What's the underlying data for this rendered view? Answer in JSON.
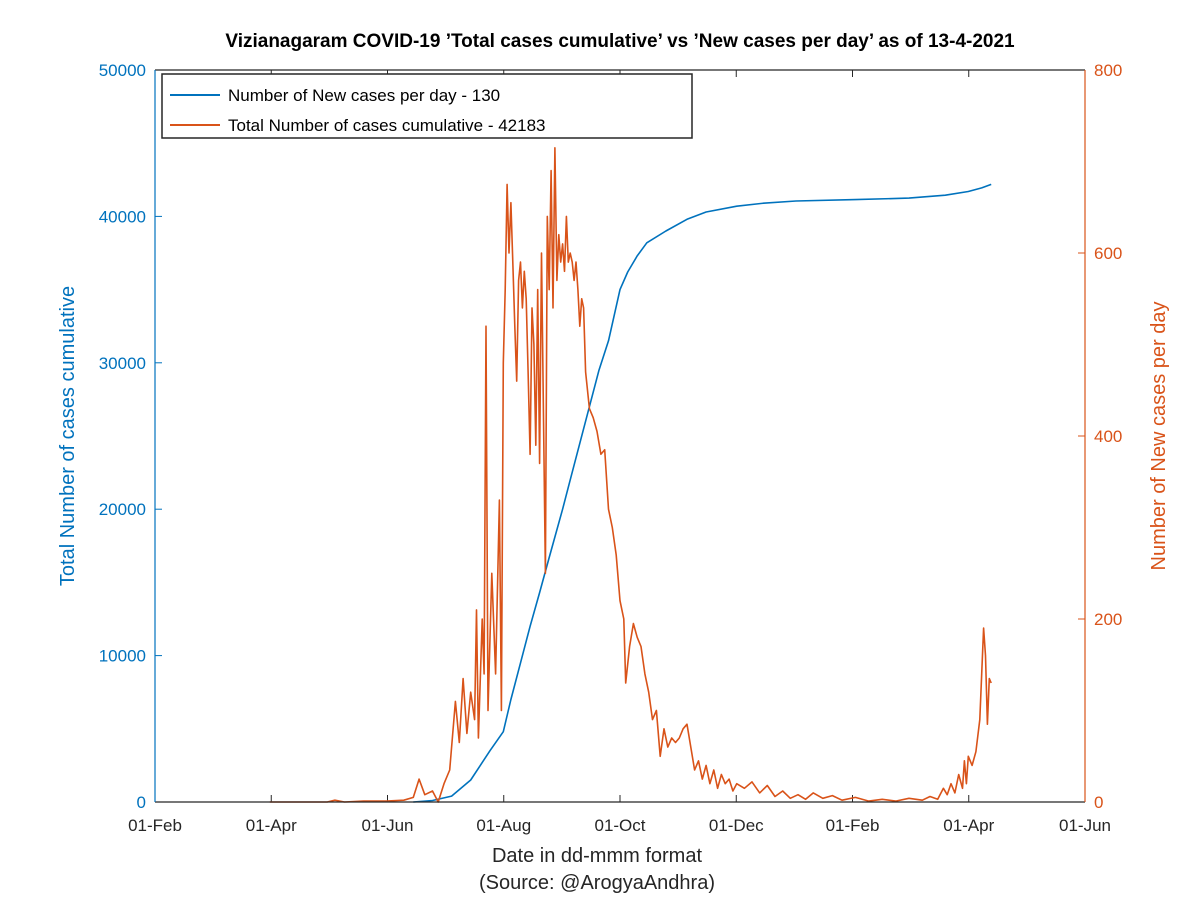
{
  "chart_data": {
    "type": "line",
    "title": "Vizianagaram COVID-19 ’Total cases cumulative’ vs ’New cases per day’ as of 13-4-2021",
    "xlabel": "Date in dd-mmm format",
    "source": "(Source: @ArogyaAndhra)",
    "x_ticks": [
      "01-Feb",
      "01-Apr",
      "01-Jun",
      "01-Aug",
      "01-Oct",
      "01-Dec",
      "01-Feb",
      "01-Apr",
      "01-Jun"
    ],
    "x_range": [
      "2020-02-01",
      "2021-06-01"
    ],
    "y_left": {
      "label": "Total Number of cases cumulative",
      "range": [
        0,
        50000
      ],
      "ticks": [
        "0",
        "10000",
        "20000",
        "30000",
        "40000",
        "50000"
      ],
      "color": "#0072BD"
    },
    "y_right": {
      "label": "Number of New cases per day",
      "range": [
        0,
        800
      ],
      "ticks": [
        "0",
        "200",
        "400",
        "600",
        "800"
      ],
      "color": "#D95319"
    },
    "legend": {
      "placement": "top-left",
      "entries": [
        "Number of New cases per day - 130",
        "Total Number of cases cumulative - 42183"
      ]
    },
    "series": [
      {
        "name": "Total Number of cases cumulative - 42183",
        "axis": "left",
        "color": "#0072BD",
        "points": [
          [
            "2020-06-15",
            0
          ],
          [
            "2020-06-25",
            100
          ],
          [
            "2020-07-05",
            400
          ],
          [
            "2020-07-15",
            1500
          ],
          [
            "2020-07-20",
            2500
          ],
          [
            "2020-07-25",
            3500
          ],
          [
            "2020-08-01",
            4800
          ],
          [
            "2020-08-05",
            7000
          ],
          [
            "2020-08-10",
            9500
          ],
          [
            "2020-08-15",
            12000
          ],
          [
            "2020-08-20",
            14300
          ],
          [
            "2020-08-25",
            16700
          ],
          [
            "2020-09-01",
            20000
          ],
          [
            "2020-09-05",
            22000
          ],
          [
            "2020-09-10",
            24500
          ],
          [
            "2020-09-15",
            27000
          ],
          [
            "2020-09-20",
            29500
          ],
          [
            "2020-09-25",
            31500
          ],
          [
            "2020-10-01",
            35000
          ],
          [
            "2020-10-05",
            36200
          ],
          [
            "2020-10-10",
            37300
          ],
          [
            "2020-10-15",
            38200
          ],
          [
            "2020-10-25",
            39000
          ],
          [
            "2020-11-05",
            39800
          ],
          [
            "2020-11-15",
            40300
          ],
          [
            "2020-12-01",
            40700
          ],
          [
            "2020-12-15",
            40900
          ],
          [
            "2021-01-01",
            41050
          ],
          [
            "2021-02-01",
            41150
          ],
          [
            "2021-03-01",
            41250
          ],
          [
            "2021-03-20",
            41450
          ],
          [
            "2021-04-01",
            41700
          ],
          [
            "2021-04-08",
            41950
          ],
          [
            "2021-04-13",
            42183
          ]
        ]
      },
      {
        "name": "Number of New cases per day - 130",
        "axis": "right",
        "color": "#D95319",
        "points": [
          [
            "2020-04-01",
            0
          ],
          [
            "2020-05-01",
            0
          ],
          [
            "2020-05-05",
            2
          ],
          [
            "2020-05-10",
            0
          ],
          [
            "2020-05-20",
            1
          ],
          [
            "2020-06-01",
            1
          ],
          [
            "2020-06-10",
            2
          ],
          [
            "2020-06-15",
            5
          ],
          [
            "2020-06-18",
            25
          ],
          [
            "2020-06-21",
            8
          ],
          [
            "2020-06-25",
            12
          ],
          [
            "2020-06-28",
            0
          ],
          [
            "2020-07-01",
            20
          ],
          [
            "2020-07-04",
            35
          ],
          [
            "2020-07-07",
            110
          ],
          [
            "2020-07-09",
            65
          ],
          [
            "2020-07-11",
            135
          ],
          [
            "2020-07-13",
            75
          ],
          [
            "2020-07-15",
            120
          ],
          [
            "2020-07-17",
            90
          ],
          [
            "2020-07-18",
            210
          ],
          [
            "2020-07-19",
            70
          ],
          [
            "2020-07-21",
            200
          ],
          [
            "2020-07-22",
            140
          ],
          [
            "2020-07-23",
            520
          ],
          [
            "2020-07-24",
            100
          ],
          [
            "2020-07-26",
            250
          ],
          [
            "2020-07-28",
            140
          ],
          [
            "2020-07-30",
            330
          ],
          [
            "2020-07-31",
            100
          ],
          [
            "2020-08-01",
            480
          ],
          [
            "2020-08-02",
            560
          ],
          [
            "2020-08-03",
            675
          ],
          [
            "2020-08-04",
            600
          ],
          [
            "2020-08-05",
            655
          ],
          [
            "2020-08-06",
            590
          ],
          [
            "2020-08-07",
            520
          ],
          [
            "2020-08-08",
            460
          ],
          [
            "2020-08-09",
            570
          ],
          [
            "2020-08-10",
            590
          ],
          [
            "2020-08-11",
            540
          ],
          [
            "2020-08-12",
            580
          ],
          [
            "2020-08-13",
            550
          ],
          [
            "2020-08-14",
            470
          ],
          [
            "2020-08-15",
            380
          ],
          [
            "2020-08-16",
            540
          ],
          [
            "2020-08-17",
            500
          ],
          [
            "2020-08-18",
            390
          ],
          [
            "2020-08-19",
            560
          ],
          [
            "2020-08-20",
            370
          ],
          [
            "2020-08-21",
            600
          ],
          [
            "2020-08-22",
            420
          ],
          [
            "2020-08-23",
            250
          ],
          [
            "2020-08-24",
            640
          ],
          [
            "2020-08-25",
            560
          ],
          [
            "2020-08-26",
            690
          ],
          [
            "2020-08-27",
            540
          ],
          [
            "2020-08-28",
            715
          ],
          [
            "2020-08-29",
            570
          ],
          [
            "2020-08-30",
            620
          ],
          [
            "2020-08-31",
            590
          ],
          [
            "2020-09-01",
            610
          ],
          [
            "2020-09-02",
            580
          ],
          [
            "2020-09-03",
            640
          ],
          [
            "2020-09-04",
            590
          ],
          [
            "2020-09-05",
            600
          ],
          [
            "2020-09-06",
            590
          ],
          [
            "2020-09-07",
            570
          ],
          [
            "2020-09-08",
            590
          ],
          [
            "2020-09-09",
            560
          ],
          [
            "2020-09-10",
            520
          ],
          [
            "2020-09-11",
            550
          ],
          [
            "2020-09-12",
            540
          ],
          [
            "2020-09-13",
            470
          ],
          [
            "2020-09-15",
            430
          ],
          [
            "2020-09-17",
            420
          ],
          [
            "2020-09-19",
            405
          ],
          [
            "2020-09-21",
            380
          ],
          [
            "2020-09-23",
            385
          ],
          [
            "2020-09-25",
            320
          ],
          [
            "2020-09-27",
            300
          ],
          [
            "2020-09-29",
            270
          ],
          [
            "2020-10-01",
            220
          ],
          [
            "2020-10-03",
            200
          ],
          [
            "2020-10-04",
            130
          ],
          [
            "2020-10-06",
            170
          ],
          [
            "2020-10-08",
            195
          ],
          [
            "2020-10-10",
            180
          ],
          [
            "2020-10-12",
            170
          ],
          [
            "2020-10-14",
            140
          ],
          [
            "2020-10-16",
            120
          ],
          [
            "2020-10-18",
            90
          ],
          [
            "2020-10-20",
            100
          ],
          [
            "2020-10-22",
            50
          ],
          [
            "2020-10-24",
            80
          ],
          [
            "2020-10-26",
            60
          ],
          [
            "2020-10-28",
            70
          ],
          [
            "2020-10-30",
            65
          ],
          [
            "2020-11-01",
            70
          ],
          [
            "2020-11-03",
            80
          ],
          [
            "2020-11-05",
            85
          ],
          [
            "2020-11-07",
            60
          ],
          [
            "2020-11-09",
            35
          ],
          [
            "2020-11-11",
            45
          ],
          [
            "2020-11-13",
            25
          ],
          [
            "2020-11-15",
            40
          ],
          [
            "2020-11-17",
            20
          ],
          [
            "2020-11-19",
            35
          ],
          [
            "2020-11-21",
            15
          ],
          [
            "2020-11-23",
            30
          ],
          [
            "2020-11-25",
            20
          ],
          [
            "2020-11-27",
            25
          ],
          [
            "2020-11-29",
            12
          ],
          [
            "2020-12-01",
            20
          ],
          [
            "2020-12-05",
            15
          ],
          [
            "2020-12-09",
            22
          ],
          [
            "2020-12-13",
            10
          ],
          [
            "2020-12-17",
            18
          ],
          [
            "2020-12-21",
            6
          ],
          [
            "2020-12-25",
            12
          ],
          [
            "2020-12-29",
            4
          ],
          [
            "2021-01-02",
            8
          ],
          [
            "2021-01-06",
            3
          ],
          [
            "2021-01-10",
            10
          ],
          [
            "2021-01-15",
            4
          ],
          [
            "2021-01-20",
            7
          ],
          [
            "2021-01-25",
            2
          ],
          [
            "2021-02-01",
            5
          ],
          [
            "2021-02-08",
            1
          ],
          [
            "2021-02-15",
            3
          ],
          [
            "2021-02-22",
            1
          ],
          [
            "2021-03-01",
            4
          ],
          [
            "2021-03-08",
            2
          ],
          [
            "2021-03-12",
            6
          ],
          [
            "2021-03-16",
            3
          ],
          [
            "2021-03-19",
            15
          ],
          [
            "2021-03-21",
            8
          ],
          [
            "2021-03-23",
            20
          ],
          [
            "2021-03-25",
            10
          ],
          [
            "2021-03-27",
            30
          ],
          [
            "2021-03-29",
            15
          ],
          [
            "2021-03-30",
            45
          ],
          [
            "2021-03-31",
            20
          ],
          [
            "2021-04-01",
            50
          ],
          [
            "2021-04-03",
            40
          ],
          [
            "2021-04-05",
            55
          ],
          [
            "2021-04-07",
            90
          ],
          [
            "2021-04-08",
            140
          ],
          [
            "2021-04-09",
            190
          ],
          [
            "2021-04-10",
            160
          ],
          [
            "2021-04-11",
            85
          ],
          [
            "2021-04-12",
            135
          ],
          [
            "2021-04-13",
            130
          ]
        ]
      }
    ]
  }
}
